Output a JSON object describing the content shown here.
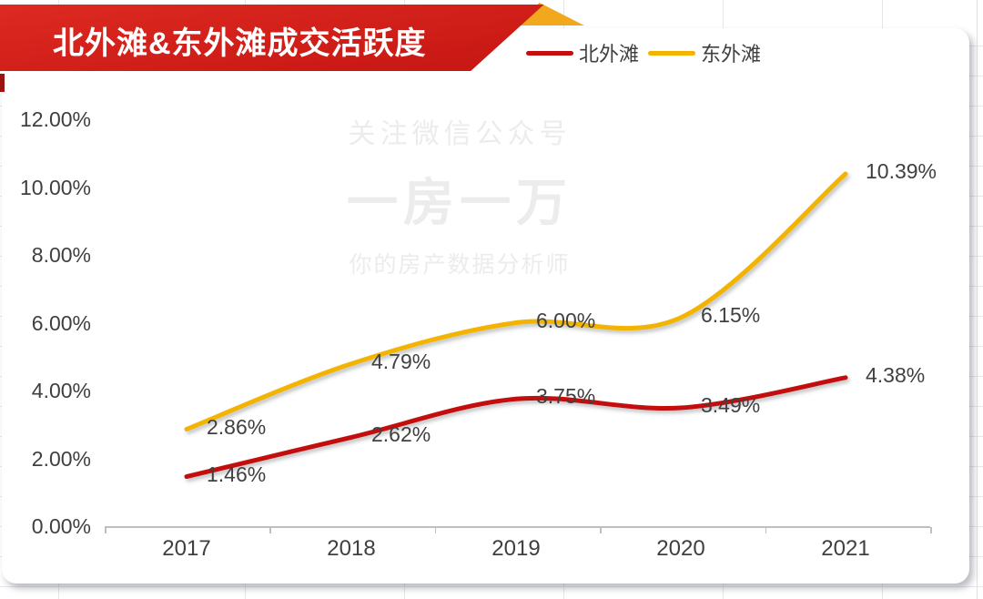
{
  "banner": {
    "title": "北外滩&东外滩成交活跃度"
  },
  "legend": {
    "items": [
      {
        "label": "北外滩",
        "color": "#C40F0F"
      },
      {
        "label": "东外滩",
        "color": "#F3B400"
      }
    ]
  },
  "watermark": {
    "line1": "关注微信公众号",
    "line2": "一房一万",
    "line3": "你的房产数据分析师"
  },
  "chart_data": {
    "type": "line",
    "title": "北外滩&东外滩成交活跃度",
    "categories": [
      "2017",
      "2018",
      "2019",
      "2020",
      "2021"
    ],
    "series": [
      {
        "name": "北外滩",
        "color": "#C40F0F",
        "values": [
          1.46,
          2.62,
          3.75,
          3.49,
          4.38
        ],
        "data_labels": [
          "1.46%",
          "2.62%",
          "3.75%",
          "3.49%",
          "4.38%"
        ]
      },
      {
        "name": "东外滩",
        "color": "#F3B400",
        "values": [
          2.86,
          4.79,
          6.0,
          6.15,
          10.39
        ],
        "data_labels": [
          "2.86%",
          "4.79%",
          "6.00%",
          "6.15%",
          "10.39%"
        ]
      }
    ],
    "ylim": [
      0,
      12
    ],
    "y_tick_values": [
      12,
      10,
      8,
      6,
      4,
      2,
      0
    ],
    "y_tick_labels": [
      "12.00%",
      "10.00%",
      "8.00%",
      "6.00%",
      "4.00%",
      "2.00%",
      "0.00%"
    ],
    "xlabel": "",
    "ylabel": "",
    "grid": false,
    "smooth": true,
    "legend_position": "top-center",
    "axis_color": "#BFBFBF",
    "label_color": "#404040"
  }
}
